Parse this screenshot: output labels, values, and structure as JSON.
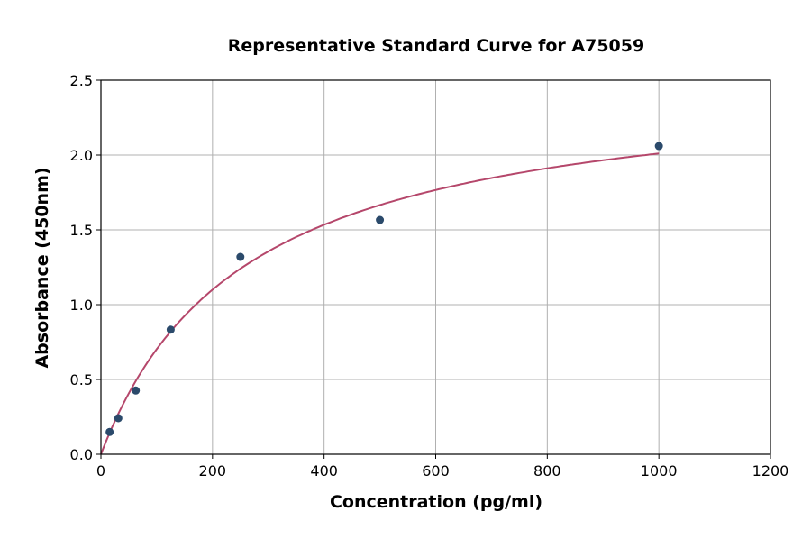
{
  "chart_data": {
    "type": "scatter",
    "title": "Representative Standard Curve for A75059",
    "xlabel": "Concentration (pg/ml)",
    "ylabel": "Absorbance (450nm)",
    "xlim": [
      0,
      1200
    ],
    "ylim": [
      0,
      2.5
    ],
    "xticks": [
      0,
      200,
      400,
      600,
      800,
      1000,
      1200
    ],
    "yticks": [
      "0.0",
      "0.5",
      "1.0",
      "1.5",
      "2.0",
      "2.5"
    ],
    "grid": true,
    "series": [
      {
        "type": "scatter",
        "x": [
          15.6,
          31.25,
          62.5,
          125,
          250,
          500,
          1000
        ],
        "y": [
          0.149,
          0.241,
          0.426,
          0.833,
          1.319,
          1.566,
          2.06
        ],
        "color": "#2b4a6b"
      },
      {
        "type": "fit-line",
        "model": "y = Vmax*x/(K+x)",
        "Vmax": 2.535,
        "K": 261,
        "x_range": [
          0,
          1000
        ],
        "color": "#b5476b"
      }
    ]
  }
}
